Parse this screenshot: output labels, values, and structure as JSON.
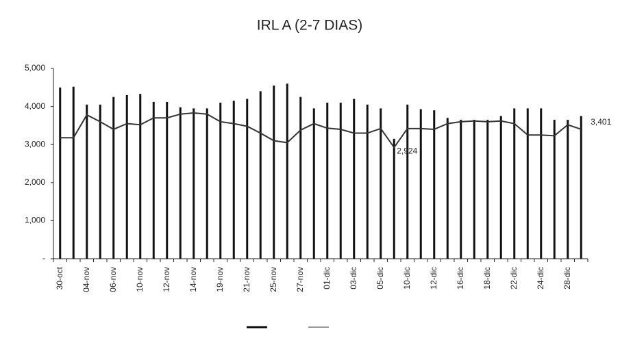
{
  "chart_data": {
    "type": "bar_line",
    "title": "IRL A (2-7  DIAS)",
    "categories": [
      "30-oct",
      null,
      "04-nov",
      null,
      "06-nov",
      null,
      "10-nov",
      null,
      "12-nov",
      null,
      "14-nov",
      null,
      "19-nov",
      null,
      "21-nov",
      null,
      "25-nov",
      null,
      "27-nov",
      null,
      "01-dic",
      null,
      "03-dic",
      null,
      "05-dic",
      null,
      "10-dic",
      null,
      "12-dic",
      null,
      "16-dic",
      null,
      "18-dic",
      null,
      "22-dic",
      null,
      "24-dic",
      null,
      "28-dic",
      null
    ],
    "series": [
      {
        "kind": "bar",
        "color": "#111111",
        "values": [
          4500,
          4520,
          4050,
          4050,
          4250,
          4300,
          4330,
          4120,
          4120,
          3980,
          3950,
          3950,
          4100,
          4150,
          4200,
          4400,
          4550,
          4600,
          4250,
          3950,
          4100,
          4100,
          4200,
          4050,
          3950,
          3150,
          4050,
          3930,
          3900,
          3700,
          3650,
          3650,
          3650,
          3750,
          3950,
          3950,
          3950,
          3650,
          3650,
          3750
        ]
      },
      {
        "kind": "line",
        "color": "#333333",
        "values": [
          3180,
          3180,
          3780,
          3600,
          3400,
          3550,
          3520,
          3700,
          3700,
          3800,
          3830,
          3800,
          3600,
          3550,
          3480,
          3300,
          3100,
          3050,
          3380,
          3550,
          3430,
          3400,
          3300,
          3300,
          3420,
          2924,
          3420,
          3420,
          3400,
          3550,
          3600,
          3620,
          3600,
          3620,
          3550,
          3250,
          3250,
          3230,
          3520,
          3401
        ],
        "value_labels": [
          null,
          null,
          null,
          null,
          null,
          null,
          null,
          null,
          null,
          null,
          null,
          null,
          null,
          null,
          null,
          null,
          null,
          null,
          null,
          null,
          null,
          null,
          null,
          null,
          null,
          "2,924",
          null,
          null,
          null,
          null,
          null,
          null,
          null,
          null,
          null,
          null,
          null,
          null,
          null,
          "3,401"
        ]
      }
    ],
    "ylim": [
      0,
      5000
    ],
    "yticks": [
      {
        "value": 0,
        "label": "-"
      },
      {
        "value": 1000,
        "label": "1,000"
      },
      {
        "value": 2000,
        "label": "2,000"
      },
      {
        "value": 3000,
        "label": "3,000"
      },
      {
        "value": 4000,
        "label": "4,000"
      },
      {
        "value": 5000,
        "label": "5,000"
      }
    ],
    "grid": false
  }
}
